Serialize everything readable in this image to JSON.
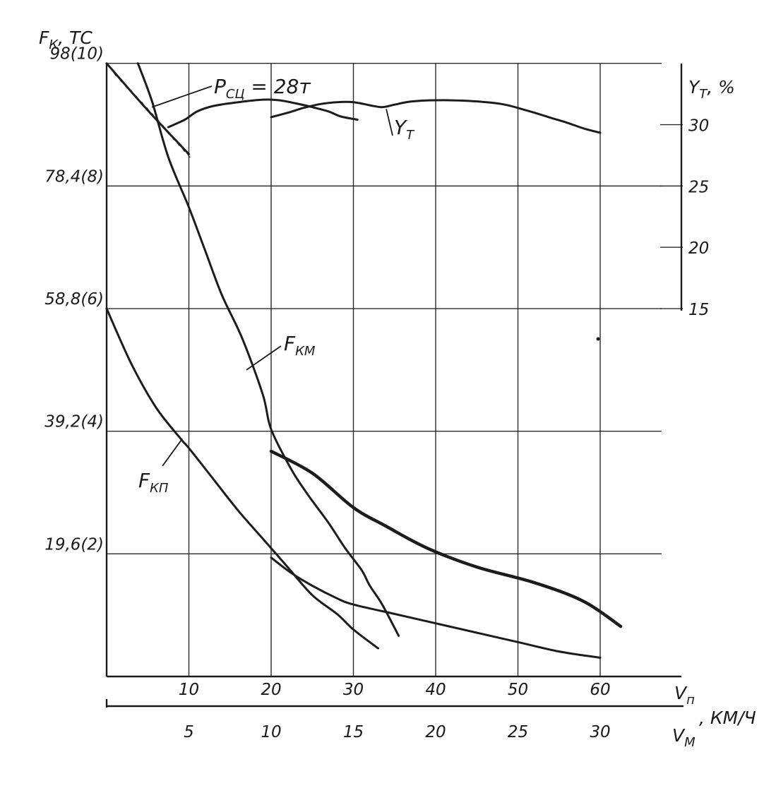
{
  "chart_data": {
    "type": "line",
    "title": "",
    "grid": true,
    "y_left": {
      "label_main": "F",
      "label_sub": "К",
      "label_unit": ", ТС",
      "ticks": [
        {
          "value": 19.6,
          "label": "19,6(2)"
        },
        {
          "value": 39.2,
          "label": "39,2(4)"
        },
        {
          "value": 58.8,
          "label": "58,8(6)"
        },
        {
          "value": 78.4,
          "label": "78,4(8)"
        },
        {
          "value": 98,
          "label": "98(10)"
        }
      ],
      "range": [
        0,
        98
      ]
    },
    "y_right": {
      "label_main": "Y",
      "label_sub": "T",
      "label_unit": ", %",
      "ticks": [
        {
          "value": 15,
          "label": "15"
        },
        {
          "value": 20,
          "label": "20"
        },
        {
          "value": 25,
          "label": "25"
        },
        {
          "value": 30,
          "label": "30"
        }
      ]
    },
    "x_top": {
      "label_main": "V",
      "label_sub": "п",
      "ticks": [
        {
          "value": 10,
          "label": "10"
        },
        {
          "value": 20,
          "label": "20"
        },
        {
          "value": 30,
          "label": "30"
        },
        {
          "value": 40,
          "label": "40"
        },
        {
          "value": 50,
          "label": "50"
        },
        {
          "value": 60,
          "label": "60"
        }
      ],
      "range": [
        0,
        68
      ]
    },
    "x_bottom": {
      "label_main": "V",
      "label_sub": "М",
      "unit": ", КМ/Ч",
      "ticks": [
        {
          "value": 5,
          "label": "5"
        },
        {
          "value": 10,
          "label": "10"
        },
        {
          "value": 15,
          "label": "15"
        },
        {
          "value": 20,
          "label": "20"
        },
        {
          "value": 25,
          "label": "25"
        },
        {
          "value": 30,
          "label": "30"
        }
      ]
    },
    "annotations": {
      "adhesion_main": "P",
      "adhesion_sub": "СЦ",
      "adhesion_value": " = 28т",
      "fkm_main": "F",
      "fkm_sub": "КМ",
      "fkp_main": "F",
      "fkp_sub": "КП",
      "yt_main": "Y",
      "yt_sub": "Т"
    },
    "series": [
      {
        "id": "adhesion",
        "width": 3,
        "points": [
          [
            0,
            98
          ],
          [
            5,
            90.5
          ],
          [
            10,
            83.5
          ]
        ]
      },
      {
        "id": "fkm",
        "width": 3,
        "points": [
          [
            3.8,
            98
          ],
          [
            5.5,
            92
          ],
          [
            7.5,
            83
          ],
          [
            10,
            75
          ],
          [
            12,
            68
          ],
          [
            14,
            61
          ],
          [
            16.5,
            54
          ],
          [
            19,
            45
          ],
          [
            20,
            39.5
          ],
          [
            22.5,
            33
          ],
          [
            24.5,
            29
          ],
          [
            27,
            24.5
          ],
          [
            29,
            20.5
          ],
          [
            31,
            17
          ],
          [
            32,
            14.5
          ],
          [
            33.5,
            11.5
          ],
          [
            35.5,
            6.5
          ]
        ]
      },
      {
        "id": "fkm_branch",
        "width": 4.5,
        "points": [
          [
            20,
            36
          ],
          [
            25,
            32.5
          ],
          [
            30,
            27
          ],
          [
            34,
            24
          ],
          [
            39,
            20.5
          ],
          [
            45,
            17.5
          ],
          [
            52,
            15
          ],
          [
            58,
            12
          ],
          [
            62.5,
            8
          ]
        ]
      },
      {
        "id": "fkp",
        "width": 3,
        "points": [
          [
            0,
            58.8
          ],
          [
            3,
            50
          ],
          [
            6,
            43
          ],
          [
            9,
            38
          ],
          [
            10,
            36.5
          ],
          [
            13,
            31.5
          ],
          [
            16,
            26.5
          ],
          [
            19,
            22
          ],
          [
            22,
            17.5
          ],
          [
            25,
            13
          ],
          [
            28,
            10
          ],
          [
            30,
            7.5
          ],
          [
            33,
            4.5
          ]
        ]
      },
      {
        "id": "fkp_branch",
        "width": 3,
        "points": [
          [
            20,
            19
          ],
          [
            22.5,
            16.5
          ],
          [
            25,
            14.5
          ],
          [
            28,
            12.5
          ],
          [
            30,
            11.5
          ],
          [
            35,
            10
          ],
          [
            40,
            8.5
          ],
          [
            45,
            7
          ],
          [
            50,
            5.5
          ],
          [
            55,
            4
          ],
          [
            60,
            3
          ]
        ]
      },
      {
        "id": "yt_main",
        "width": 3,
        "points": [
          [
            7.5,
            87.8
          ],
          [
            9.5,
            89
          ],
          [
            11,
            90.3
          ],
          [
            13,
            91.2
          ],
          [
            16,
            91.8
          ],
          [
            19,
            92.2
          ],
          [
            21,
            92.1
          ],
          [
            23,
            91.6
          ],
          [
            25,
            91
          ],
          [
            27,
            90.3
          ],
          [
            28.5,
            89.5
          ],
          [
            30.5,
            89
          ]
        ]
      },
      {
        "id": "yt_second",
        "width": 3,
        "points": [
          [
            20,
            89.4
          ],
          [
            22,
            90.1
          ],
          [
            24,
            90.9
          ],
          [
            26,
            91.5
          ],
          [
            28,
            91.8
          ],
          [
            30,
            91.8
          ],
          [
            32,
            91.3
          ],
          [
            33.5,
            91
          ],
          [
            35,
            91.4
          ],
          [
            37,
            91.9
          ],
          [
            40,
            92.1
          ],
          [
            44,
            92
          ],
          [
            48,
            91.5
          ],
          [
            51,
            90.5
          ],
          [
            54,
            89.3
          ],
          [
            56,
            88.5
          ],
          [
            58,
            87.6
          ],
          [
            60,
            86.9
          ]
        ]
      }
    ]
  }
}
